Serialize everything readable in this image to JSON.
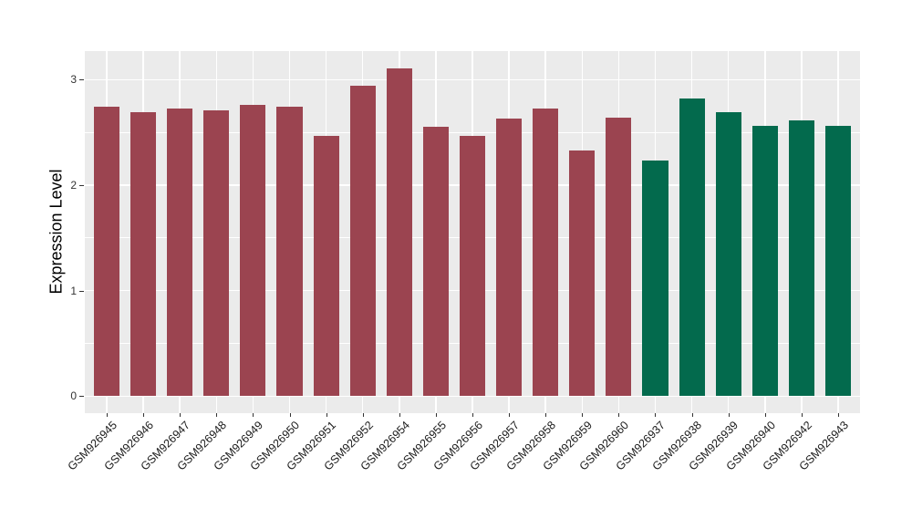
{
  "figure": {
    "background": "#ffffff",
    "panel_background": "#ebebeb",
    "gridline_color": "#ffffff",
    "axis_text_color": "#333333",
    "axis_title_color": "#000000",
    "tick_color": "#333333"
  },
  "chart_data": {
    "type": "bar",
    "title": "",
    "xlabel": "",
    "ylabel": "Expression Level",
    "legend": "none",
    "grid": true,
    "y_ticks": [
      0,
      1,
      2,
      3
    ],
    "y_minor_ticks": [
      0.5,
      1.5,
      2.5
    ],
    "ylim": [
      -0.16,
      3.27
    ],
    "categories": [
      "GSM926945",
      "GSM926946",
      "GSM926947",
      "GSM926948",
      "GSM926949",
      "GSM926950",
      "GSM926951",
      "GSM926952",
      "GSM926954",
      "GSM926955",
      "GSM926956",
      "GSM926957",
      "GSM926958",
      "GSM926959",
      "GSM926960",
      "GSM926937",
      "GSM926938",
      "GSM926939",
      "GSM926940",
      "GSM926942",
      "GSM926943"
    ],
    "values": [
      2.74,
      2.69,
      2.73,
      2.71,
      2.76,
      2.74,
      2.47,
      2.94,
      3.11,
      2.55,
      2.47,
      2.63,
      2.73,
      2.33,
      2.64,
      2.23,
      2.82,
      2.69,
      2.56,
      2.61,
      2.56
    ],
    "bar_colors": [
      "#9B4450",
      "#9B4450",
      "#9B4450",
      "#9B4450",
      "#9B4450",
      "#9B4450",
      "#9B4450",
      "#9B4450",
      "#9B4450",
      "#9B4450",
      "#9B4450",
      "#9B4450",
      "#9B4450",
      "#9B4450",
      "#9B4450",
      "#036A4D",
      "#036A4D",
      "#036A4D",
      "#036A4D",
      "#036A4D",
      "#036A4D"
    ],
    "color_legend": {
      "#9B4450": "maroon-group",
      "#036A4D": "green-group"
    }
  }
}
